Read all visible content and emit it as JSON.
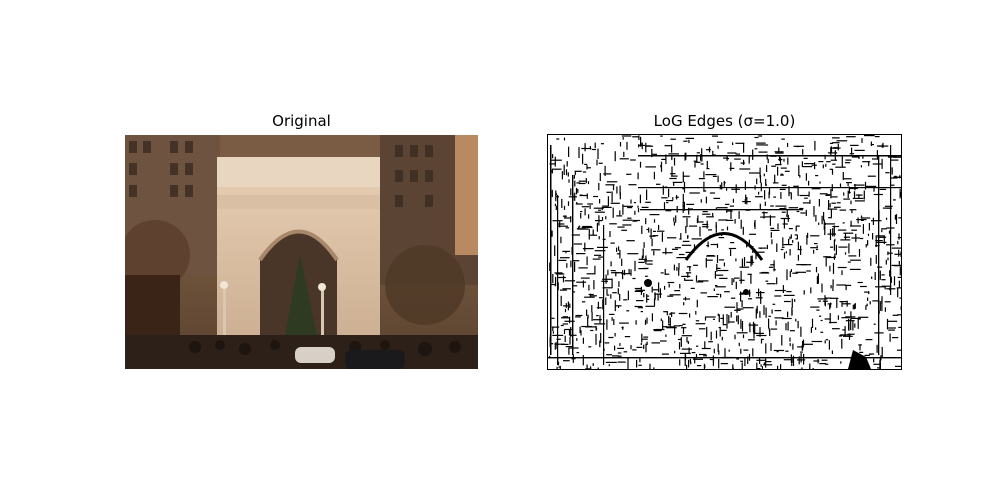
{
  "figure": {
    "panels": [
      {
        "title": "Original"
      },
      {
        "title": "LoG Edges (σ=1.0)"
      }
    ]
  }
}
